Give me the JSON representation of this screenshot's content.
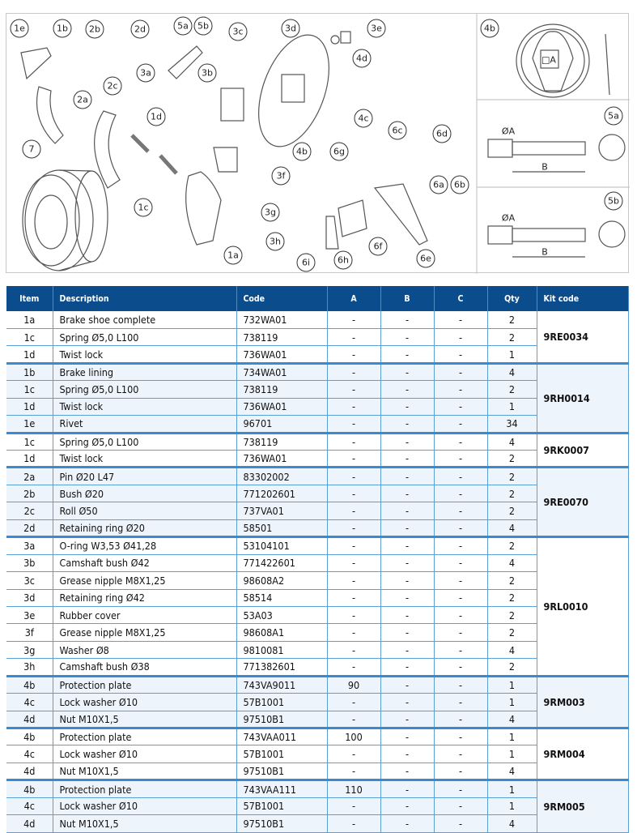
{
  "diagram": {
    "labels": [
      "1e",
      "1b",
      "2b",
      "2d",
      "5a",
      "5b",
      "3c",
      "3d",
      "3e",
      "4d",
      "3a",
      "3b",
      "2c",
      "2a",
      "1d",
      "4c",
      "6c",
      "6d",
      "7",
      "4b",
      "6g",
      "3f",
      "6a",
      "6b",
      "1c",
      "3g",
      "3h",
      "6f",
      "1a",
      "6i",
      "6h",
      "6e"
    ],
    "detail_labels": {
      "plate": "4b",
      "shaft_a": "5a",
      "shaft_b": "5b",
      "dim_square": "□A",
      "dim_dia": "ØA",
      "dim_len": "B"
    }
  },
  "table": {
    "headers": {
      "item": "Item",
      "description": "Description",
      "code": "Code",
      "a": "A",
      "b": "B",
      "c": "C",
      "qty": "Qty",
      "kit": "Kit code"
    },
    "groups": [
      {
        "kit": "9RE0034",
        "rows": [
          {
            "item": "1a",
            "description": "Brake shoe complete",
            "code": "732WA01",
            "a": "-",
            "b": "-",
            "c": "-",
            "qty": "2"
          },
          {
            "item": "1c",
            "description": "Spring Ø5,0 L100",
            "code": "738119",
            "a": "-",
            "b": "-",
            "c": "-",
            "qty": "2"
          },
          {
            "item": "1d",
            "description": "Twist lock",
            "code": "736WA01",
            "a": "-",
            "b": "-",
            "c": "-",
            "qty": "1"
          }
        ]
      },
      {
        "kit": "9RH0014",
        "rows": [
          {
            "item": "1b",
            "description": "Brake lining",
            "code": "734WA01",
            "a": "-",
            "b": "-",
            "c": "-",
            "qty": "4"
          },
          {
            "item": "1c",
            "description": "Spring Ø5,0 L100",
            "code": "738119",
            "a": "-",
            "b": "-",
            "c": "-",
            "qty": "2"
          },
          {
            "item": "1d",
            "description": "Twist lock",
            "code": "736WA01",
            "a": "-",
            "b": "-",
            "c": "-",
            "qty": "1"
          },
          {
            "item": "1e",
            "description": "Rivet",
            "code": "96701",
            "a": "-",
            "b": "-",
            "c": "-",
            "qty": "34"
          }
        ]
      },
      {
        "kit": "9RK0007",
        "rows": [
          {
            "item": "1c",
            "description": "Spring Ø5,0 L100",
            "code": "738119",
            "a": "-",
            "b": "-",
            "c": "-",
            "qty": "4"
          },
          {
            "item": "1d",
            "description": "Twist lock",
            "code": "736WA01",
            "a": "-",
            "b": "-",
            "c": "-",
            "qty": "2"
          }
        ]
      },
      {
        "kit": "9RE0070",
        "rows": [
          {
            "item": "2a",
            "description": "Pin Ø20 L47",
            "code": "83302002",
            "a": "-",
            "b": "-",
            "c": "-",
            "qty": "2"
          },
          {
            "item": "2b",
            "description": "Bush Ø20",
            "code": "771202601",
            "a": "-",
            "b": "-",
            "c": "-",
            "qty": "2"
          },
          {
            "item": "2c",
            "description": "Roll Ø50",
            "code": "737VA01",
            "a": "-",
            "b": "-",
            "c": "-",
            "qty": "2"
          },
          {
            "item": "2d",
            "description": "Retaining ring Ø20",
            "code": "58501",
            "a": "-",
            "b": "-",
            "c": "-",
            "qty": "4"
          }
        ]
      },
      {
        "kit": "9RL0010",
        "rows": [
          {
            "item": "3a",
            "description": "O-ring W3,53 Ø41,28",
            "code": "53104101",
            "a": "-",
            "b": "-",
            "c": "-",
            "qty": "2"
          },
          {
            "item": "3b",
            "description": "Camshaft bush Ø42",
            "code": "771422601",
            "a": "-",
            "b": "-",
            "c": "-",
            "qty": "4"
          },
          {
            "item": "3c",
            "description": "Grease nipple M8X1,25",
            "code": "98608A2",
            "a": "-",
            "b": "-",
            "c": "-",
            "qty": "2"
          },
          {
            "item": "3d",
            "description": "Retaining ring Ø42",
            "code": "58514",
            "a": "-",
            "b": "-",
            "c": "-",
            "qty": "2"
          },
          {
            "item": "3e",
            "description": "Rubber cover",
            "code": "53A03",
            "a": "-",
            "b": "-",
            "c": "-",
            "qty": "2"
          },
          {
            "item": "3f",
            "description": "Grease nipple M8X1,25",
            "code": "98608A1",
            "a": "-",
            "b": "-",
            "c": "-",
            "qty": "2"
          },
          {
            "item": "3g",
            "description": "Washer Ø8",
            "code": "9810081",
            "a": "-",
            "b": "-",
            "c": "-",
            "qty": "4"
          },
          {
            "item": "3h",
            "description": "Camshaft bush Ø38",
            "code": "771382601",
            "a": "-",
            "b": "-",
            "c": "-",
            "qty": "2"
          }
        ]
      },
      {
        "kit": "9RM003",
        "rows": [
          {
            "item": "4b",
            "description": "Protection plate",
            "code": "743VA9011",
            "a": "90",
            "b": "-",
            "c": "-",
            "qty": "1"
          },
          {
            "item": "4c",
            "description": "Lock washer Ø10",
            "code": "57B1001",
            "a": "-",
            "b": "-",
            "c": "-",
            "qty": "1"
          },
          {
            "item": "4d",
            "description": "Nut M10X1,5",
            "code": "97510B1",
            "a": "-",
            "b": "-",
            "c": "-",
            "qty": "4"
          }
        ]
      },
      {
        "kit": "9RM004",
        "rows": [
          {
            "item": "4b",
            "description": "Protection plate",
            "code": "743VAA011",
            "a": "100",
            "b": "-",
            "c": "-",
            "qty": "1"
          },
          {
            "item": "4c",
            "description": "Lock washer Ø10",
            "code": "57B1001",
            "a": "-",
            "b": "-",
            "c": "-",
            "qty": "1"
          },
          {
            "item": "4d",
            "description": "Nut M10X1,5",
            "code": "97510B1",
            "a": "-",
            "b": "-",
            "c": "-",
            "qty": "4"
          }
        ]
      },
      {
        "kit": "9RM005",
        "rows": [
          {
            "item": "4b",
            "description": "Protection plate",
            "code": "743VAA111",
            "a": "110",
            "b": "-",
            "c": "-",
            "qty": "1"
          },
          {
            "item": "4c",
            "description": "Lock washer Ø10",
            "code": "57B1001",
            "a": "-",
            "b": "-",
            "c": "-",
            "qty": "1"
          },
          {
            "item": "4d",
            "description": "Nut M10X1,5",
            "code": "97510B1",
            "a": "-",
            "b": "-",
            "c": "-",
            "qty": "4"
          }
        ]
      }
    ]
  },
  "colors": {
    "header_bg": "#0b4c8c",
    "alt_row": "#eef4fb",
    "rule": "#3a8ad0"
  }
}
